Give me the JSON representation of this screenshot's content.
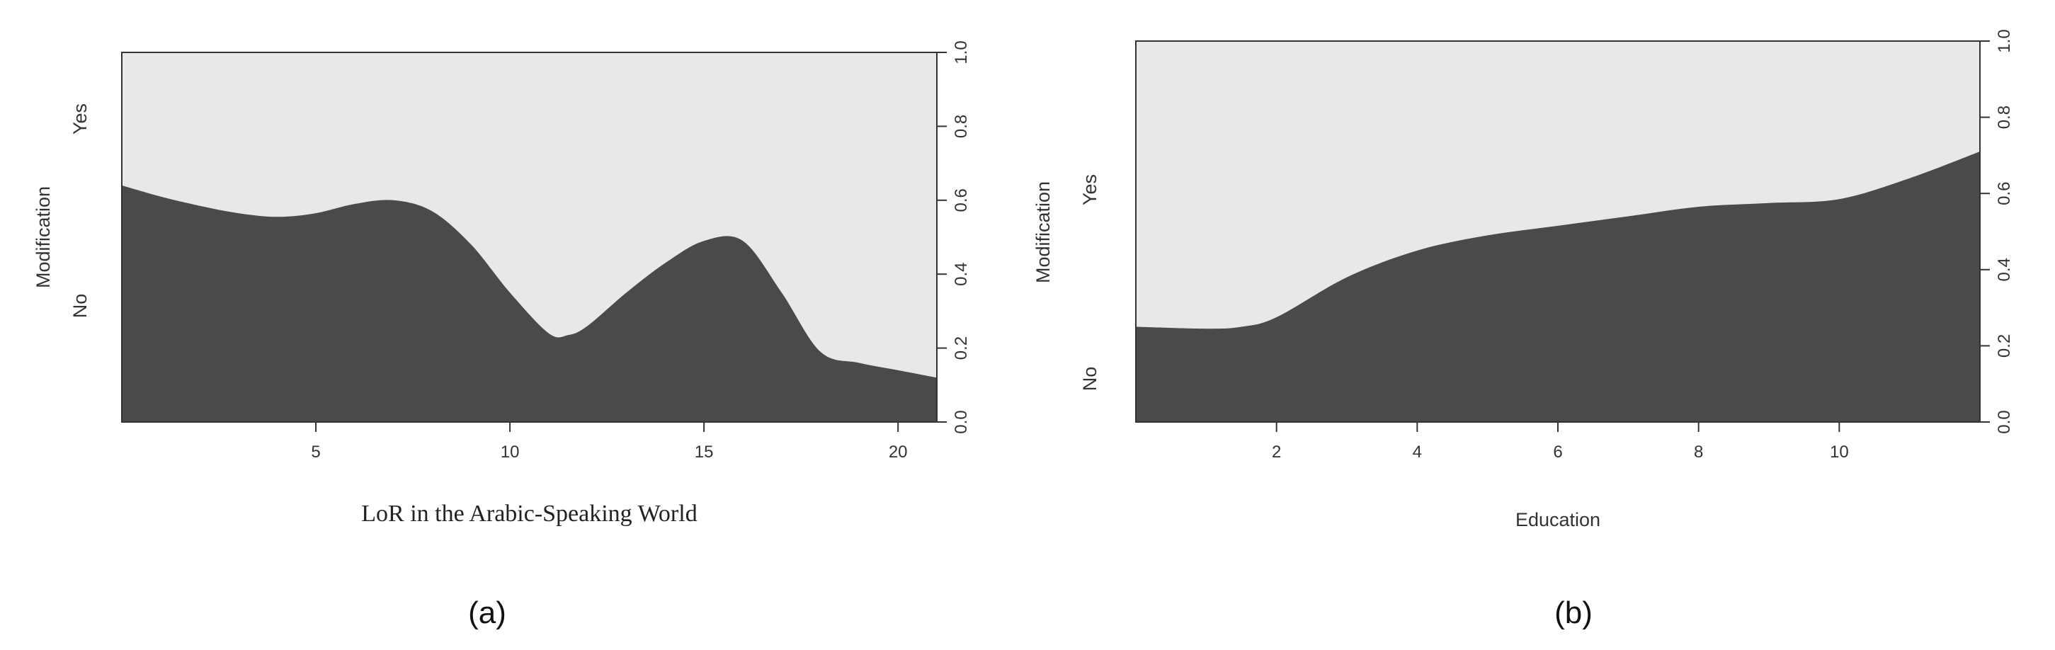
{
  "colors": {
    "no_fill": "#4a4a4a",
    "yes_fill": "#e8e8e8",
    "frame": "#333333"
  },
  "chart_data": [
    {
      "type": "area",
      "caption": "(a)",
      "xlabel": "LoR in the Arabic-Speaking World",
      "ylabel": "Modification",
      "categories": [
        "No",
        "Yes"
      ],
      "xlim": [
        0,
        21
      ],
      "ylim": [
        0,
        1
      ],
      "x_ticks": [
        5,
        10,
        15,
        20
      ],
      "y_ticks": [
        "0.0",
        "0.2",
        "0.4",
        "0.6",
        "0.8",
        "1.0"
      ],
      "x": [
        0,
        1,
        2,
        3,
        4,
        5,
        6,
        7,
        8,
        9,
        10,
        11,
        11.5,
        12,
        13,
        14,
        15,
        16,
        17,
        18,
        19,
        20,
        21
      ],
      "series": [
        {
          "values": [
            0.64,
            0.61,
            0.585,
            0.565,
            0.555,
            0.565,
            0.59,
            0.6,
            0.57,
            0.48,
            0.35,
            0.24,
            0.235,
            0.26,
            0.35,
            0.43,
            0.49,
            0.49,
            0.35,
            0.19,
            0.16,
            0.14,
            0.12
          ]
        }
      ]
    },
    {
      "type": "area",
      "caption": "(b)",
      "xlabel": "Education",
      "ylabel": "Modification",
      "categories": [
        "No",
        "Yes"
      ],
      "xlim": [
        0,
        12
      ],
      "ylim": [
        0,
        1
      ],
      "x_ticks": [
        2,
        4,
        6,
        8,
        10
      ],
      "y_ticks": [
        "0.0",
        "0.2",
        "0.4",
        "0.6",
        "0.8",
        "1.0"
      ],
      "x": [
        0,
        1,
        1.5,
        2,
        3,
        4,
        5,
        6,
        7,
        8,
        9,
        10,
        11,
        12
      ],
      "series": [
        {
          "values": [
            0.25,
            0.245,
            0.25,
            0.275,
            0.38,
            0.45,
            0.49,
            0.515,
            0.54,
            0.565,
            0.575,
            0.585,
            0.64,
            0.71
          ]
        }
      ]
    }
  ]
}
